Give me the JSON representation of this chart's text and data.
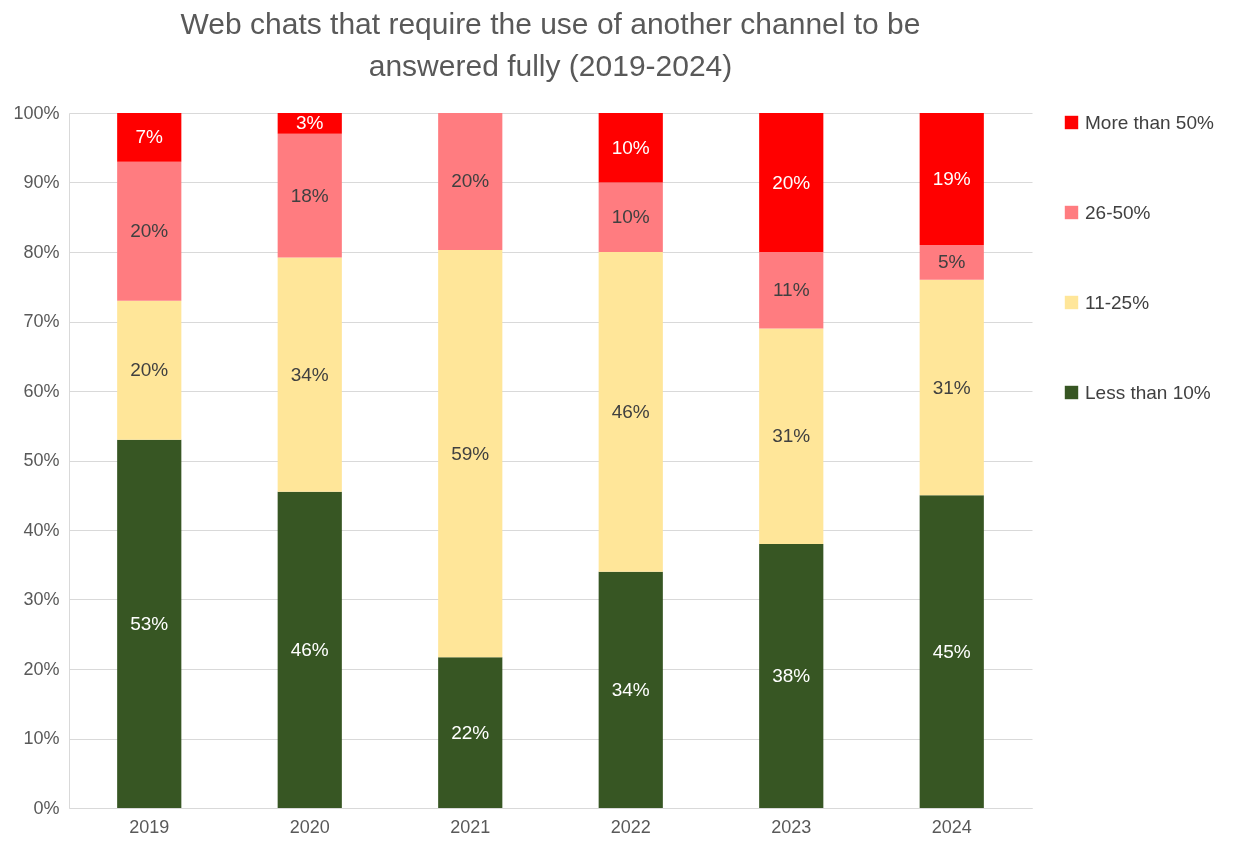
{
  "chart_data": {
    "type": "bar",
    "stacked": true,
    "title": "Web chats that require the use of another channel to be answered fully (2019-2024)",
    "categories": [
      "2019",
      "2020",
      "2021",
      "2022",
      "2023",
      "2024"
    ],
    "series": [
      {
        "name": "Less than 10%",
        "color": "#375623",
        "values": [
          53,
          45.5,
          21.7,
          34,
          38,
          45
        ],
        "value_labels": [
          "53%",
          "46%",
          "22%",
          "34%",
          "38%",
          "45%"
        ]
      },
      {
        "name": "11-25%",
        "color": "#ffe699",
        "values": [
          20,
          33.7,
          58.6,
          46,
          31,
          31
        ],
        "value_labels": [
          "20%",
          "34%",
          "59%",
          "46%",
          "31%",
          "31%"
        ]
      },
      {
        "name": "26-50%",
        "color": "#ff7c80",
        "values": [
          20,
          17.8,
          19.7,
          10,
          11,
          5
        ],
        "value_labels": [
          "20%",
          "18%",
          "20%",
          "10%",
          "11%",
          "5%"
        ]
      },
      {
        "name": "More than 50%",
        "color": "#ff0000",
        "values": [
          7,
          3,
          0,
          10,
          20,
          19
        ],
        "value_labels": [
          "7%",
          "3%",
          null,
          "10%",
          "20%",
          "19%"
        ]
      }
    ],
    "ylim": [
      0,
      100
    ],
    "yticks": [
      {
        "value": 0,
        "label": "0%"
      },
      {
        "value": 10,
        "label": "10%"
      },
      {
        "value": 20,
        "label": "20%"
      },
      {
        "value": 30,
        "label": "30%"
      },
      {
        "value": 40,
        "label": "40%"
      },
      {
        "value": 50,
        "label": "50%"
      },
      {
        "value": 60,
        "label": "60%"
      },
      {
        "value": 70,
        "label": "70%"
      },
      {
        "value": 80,
        "label": "80%"
      },
      {
        "value": 90,
        "label": "90%"
      },
      {
        "value": 100,
        "label": "100%"
      }
    ],
    "grid": "y",
    "legend": "right"
  }
}
